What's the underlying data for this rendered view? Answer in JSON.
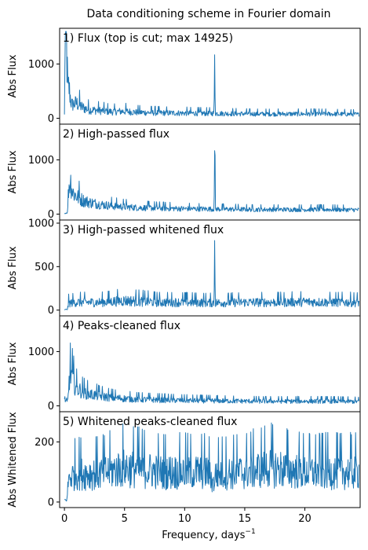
{
  "figure": {
    "title": "Data conditioning scheme in Fourier domain",
    "xlabel": "Frequency, days",
    "xlabel_superscript": "−1",
    "xticks": [
      "0",
      "5",
      "10",
      "15",
      "20"
    ]
  },
  "colors": {
    "line": "#1f77b4"
  },
  "chart_data": [
    {
      "type": "line",
      "panel_label": "1) Flux (top is cut; max 14925)",
      "ylabel": "Abs Flux",
      "xlim": [
        -0.4,
        24.6
      ],
      "ylim": [
        -50,
        1600
      ],
      "yticks": [
        0,
        1000
      ],
      "series": [
        {
          "points": [
            [
              0.0,
              60
            ],
            [
              0.05,
              1600
            ],
            [
              0.1,
              900
            ],
            [
              0.15,
              1500
            ],
            [
              0.2,
              1100
            ],
            [
              0.3,
              420
            ],
            [
              0.35,
              600
            ],
            [
              0.5,
              380
            ],
            [
              0.6,
              250
            ],
            [
              1.0,
              280
            ],
            [
              1.5,
              200
            ],
            [
              2.0,
              160
            ],
            [
              3.0,
              140
            ],
            [
              4.0,
              120
            ],
            [
              5.0,
              130
            ],
            [
              6.0,
              110
            ],
            [
              8.0,
              100
            ],
            [
              10.0,
              95
            ],
            [
              12.0,
              90
            ],
            [
              12.45,
              95
            ],
            [
              12.5,
              1170
            ],
            [
              12.55,
              90
            ],
            [
              14.0,
              85
            ],
            [
              16.0,
              80
            ],
            [
              18.0,
              80
            ],
            [
              20.0,
              80
            ],
            [
              22.0,
              80
            ],
            [
              24.0,
              75
            ],
            [
              24.5,
              70
            ]
          ],
          "noise": 0.55
        }
      ]
    },
    {
      "type": "line",
      "panel_label": "2) High-passed flux",
      "ylabel": "Abs Flux",
      "xlim": [
        -0.4,
        24.6
      ],
      "ylim": [
        -50,
        1600
      ],
      "yticks": [
        0,
        1000
      ],
      "series": [
        {
          "points": [
            [
              0.0,
              10
            ],
            [
              0.25,
              30
            ],
            [
              0.35,
              500
            ],
            [
              0.5,
              620
            ],
            [
              0.7,
              400
            ],
            [
              1.0,
              330
            ],
            [
              1.5,
              260
            ],
            [
              2.0,
              220
            ],
            [
              3.0,
              180
            ],
            [
              4.0,
              150
            ],
            [
              6.0,
              120
            ],
            [
              8.0,
              110
            ],
            [
              10.0,
              100
            ],
            [
              12.0,
              95
            ],
            [
              12.45,
              95
            ],
            [
              12.5,
              1170
            ],
            [
              12.55,
              95
            ],
            [
              14.0,
              90
            ],
            [
              16.0,
              85
            ],
            [
              18.0,
              85
            ],
            [
              20.0,
              85
            ],
            [
              22.0,
              85
            ],
            [
              24.0,
              80
            ],
            [
              24.5,
              80
            ]
          ],
          "noise": 0.5
        }
      ]
    },
    {
      "type": "line",
      "panel_label": "3) High-passed whitened flux",
      "ylabel": "Abs Flux",
      "xlim": [
        -0.4,
        24.6
      ],
      "ylim": [
        -30,
        1000
      ],
      "yticks": [
        0,
        500,
        1000
      ],
      "series": [
        {
          "points": [
            [
              0.0,
              5
            ],
            [
              0.25,
              10
            ],
            [
              0.35,
              80
            ],
            [
              1.0,
              90
            ],
            [
              3.0,
              90
            ],
            [
              5.0,
              110
            ],
            [
              8.0,
              90
            ],
            [
              10.0,
              90
            ],
            [
              12.45,
              85
            ],
            [
              12.5,
              800
            ],
            [
              12.55,
              85
            ],
            [
              15.0,
              90
            ],
            [
              18.0,
              90
            ],
            [
              20.0,
              95
            ],
            [
              22.0,
              90
            ],
            [
              24.5,
              90
            ]
          ],
          "noise": 0.6
        }
      ]
    },
    {
      "type": "line",
      "panel_label": "4) Peaks-cleaned flux",
      "ylabel": "Abs Flux",
      "xlim": [
        -0.4,
        24.6
      ],
      "ylim": [
        -50,
        1600
      ],
      "yticks": [
        0,
        1000
      ],
      "series": [
        {
          "points": [
            [
              0.0,
              140
            ],
            [
              0.2,
              60
            ],
            [
              0.3,
              120
            ],
            [
              0.4,
              520
            ],
            [
              0.55,
              600
            ],
            [
              0.8,
              420
            ],
            [
              1.0,
              330
            ],
            [
              1.5,
              260
            ],
            [
              2.0,
              220
            ],
            [
              3.0,
              180
            ],
            [
              4.0,
              150
            ],
            [
              6.0,
              120
            ],
            [
              8.0,
              110
            ],
            [
              10.0,
              100
            ],
            [
              12.0,
              95
            ],
            [
              14.0,
              90
            ],
            [
              16.0,
              85
            ],
            [
              18.0,
              85
            ],
            [
              20.0,
              85
            ],
            [
              22.0,
              85
            ],
            [
              24.0,
              80
            ],
            [
              24.5,
              80
            ]
          ],
          "noise": 0.5
        }
      ]
    },
    {
      "type": "line",
      "panel_label": "5) Whitened peaks-cleaned flux",
      "ylabel": "Abs Whitened Flux",
      "xlim": [
        -0.4,
        24.6
      ],
      "ylim": [
        -8,
        290
      ],
      "yticks": [
        0,
        200
      ],
      "series": [
        {
          "points": [
            [
              0.0,
              8
            ],
            [
              0.2,
              5
            ],
            [
              0.35,
              80
            ],
            [
              1.0,
              95
            ],
            [
              3.0,
              95
            ],
            [
              5.0,
              115
            ],
            [
              8.0,
              100
            ],
            [
              10.0,
              100
            ],
            [
              12.0,
              100
            ],
            [
              12.4,
              60
            ],
            [
              12.6,
              95
            ],
            [
              15.0,
              100
            ],
            [
              17.0,
              115
            ],
            [
              20.0,
              100
            ],
            [
              22.0,
              100
            ],
            [
              24.5,
              100
            ]
          ],
          "noise": 0.6
        }
      ]
    }
  ]
}
